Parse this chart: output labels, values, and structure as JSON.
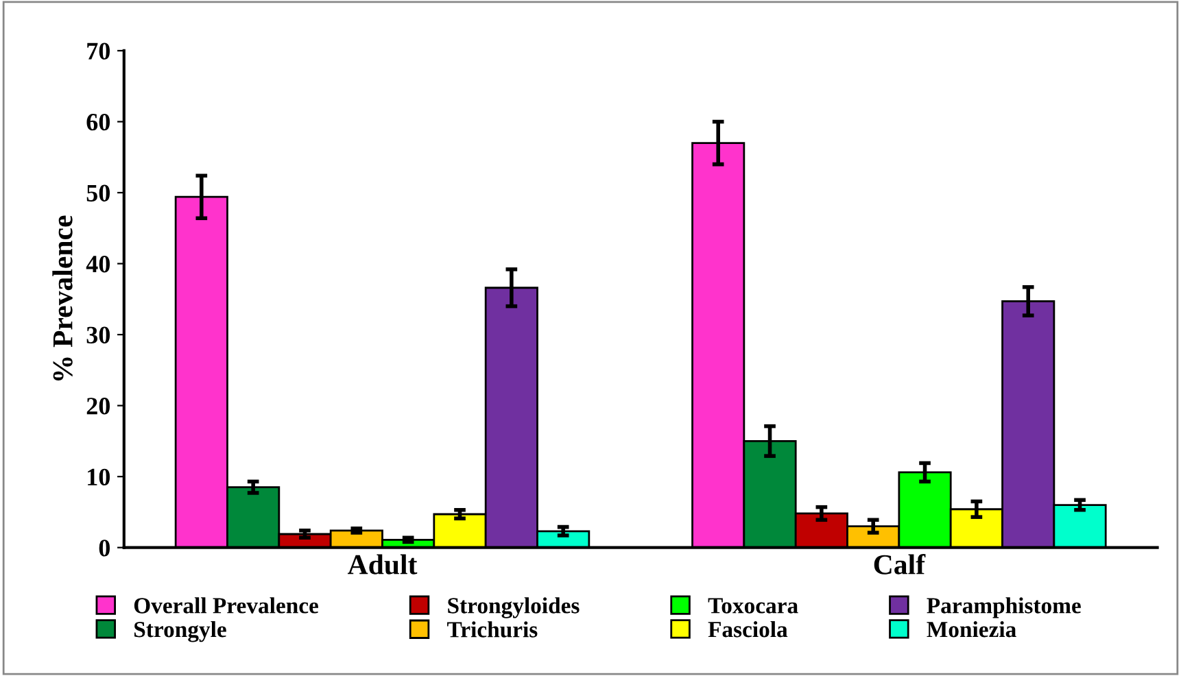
{
  "chart_data": {
    "type": "bar",
    "ylabel": "% Prevalence",
    "categories": [
      "Adult",
      "Calf"
    ],
    "ylim": [
      0,
      70
    ],
    "yticks": [
      0,
      10,
      20,
      30,
      40,
      50,
      60,
      70
    ],
    "grid": false,
    "legend": "bottom",
    "series": [
      {
        "name": "Overall Prevalence",
        "color": "#ff33cc",
        "values": [
          49.4,
          57.0
        ],
        "errors": [
          3.0,
          3.0
        ]
      },
      {
        "name": "Strongyle",
        "color": "#00883a",
        "values": [
          8.5,
          15.0
        ],
        "errors": [
          0.8,
          2.1
        ]
      },
      {
        "name": "Strongyloides",
        "color": "#c00000",
        "values": [
          1.9,
          4.8
        ],
        "errors": [
          0.5,
          0.9
        ]
      },
      {
        "name": "Trichuris",
        "color": "#ffc000",
        "values": [
          2.4,
          3.0
        ],
        "errors": [
          0.3,
          0.9
        ]
      },
      {
        "name": "Toxocara",
        "color": "#00ff00",
        "values": [
          1.1,
          10.6
        ],
        "errors": [
          0.3,
          1.3
        ]
      },
      {
        "name": "Fasciola",
        "color": "#ffff00",
        "values": [
          4.7,
          5.4
        ],
        "errors": [
          0.6,
          1.1
        ]
      },
      {
        "name": "Paramphistome",
        "color": "#7030a0",
        "values": [
          36.6,
          34.7
        ],
        "errors": [
          2.6,
          2.0
        ]
      },
      {
        "name": "Moniezia",
        "color": "#00ffcc",
        "values": [
          2.3,
          6.0
        ],
        "errors": [
          0.6,
          0.7
        ]
      }
    ]
  }
}
